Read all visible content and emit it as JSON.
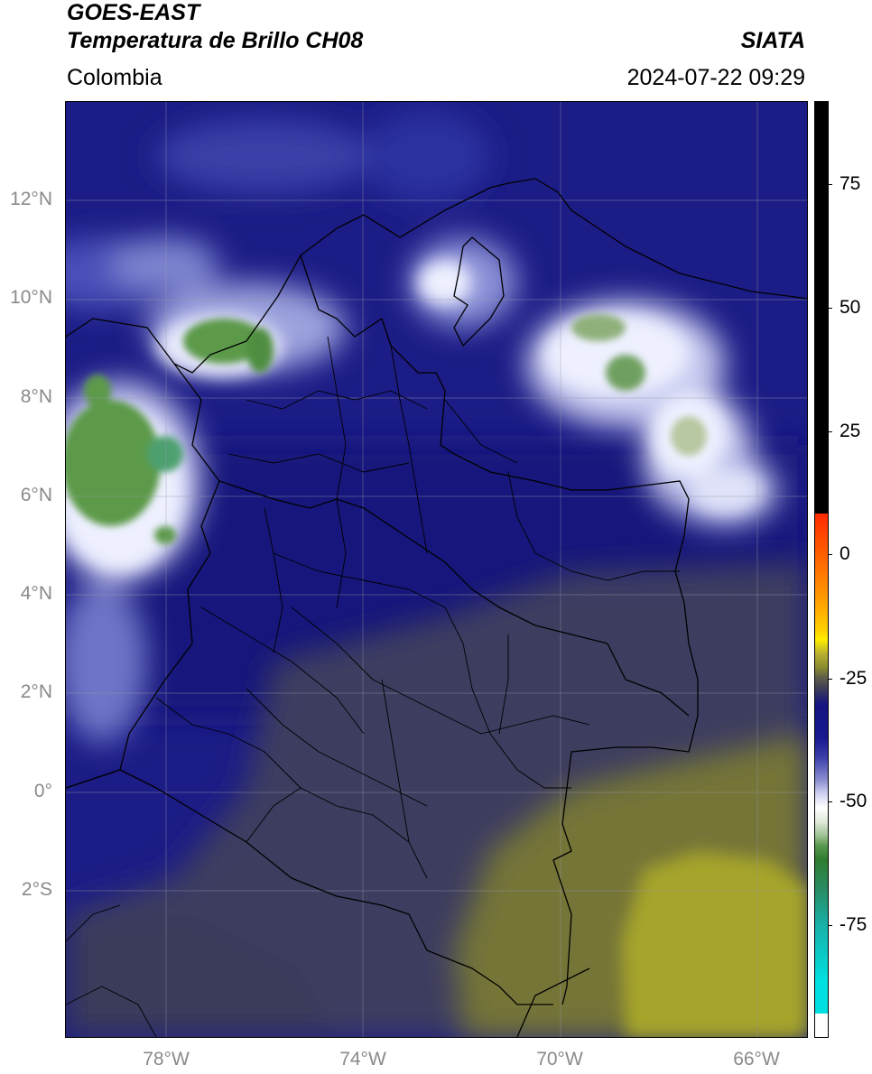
{
  "header": {
    "title_line1": "GOES-EAST",
    "title_line2": "Temperatura de Brillo CH08",
    "brand": "SIATA",
    "region": "Colombia",
    "datetime": "2024-07-22 09:29"
  },
  "map": {
    "lat_labels": [
      "12°N",
      "10°N",
      "8°N",
      "6°N",
      "4°N",
      "2°N",
      "0°",
      "2°S"
    ],
    "lon_labels": [
      "78°W",
      "74°W",
      "70°W",
      "66°W"
    ],
    "colors": {
      "dark_blue": "#16167f",
      "navy": "#20208e",
      "slate": "#3e3f5c",
      "olive": "#7f7e3c",
      "yellow": "#a8a62a",
      "white": "#eef0ff",
      "green": "#5c9a4a"
    }
  },
  "colorbar": {
    "labels": [
      "75",
      "50",
      "25",
      "0",
      "-25",
      "-50",
      "-75"
    ],
    "colors": {
      "black": "#000000",
      "red": "#ff2a00",
      "yellow": "#ffee00",
      "olive": "#8a8a30",
      "slate": "#444455",
      "navy": "#141480",
      "white": "#ffffff",
      "green": "#2f7d2f",
      "cyan": "#00e0e0"
    }
  }
}
